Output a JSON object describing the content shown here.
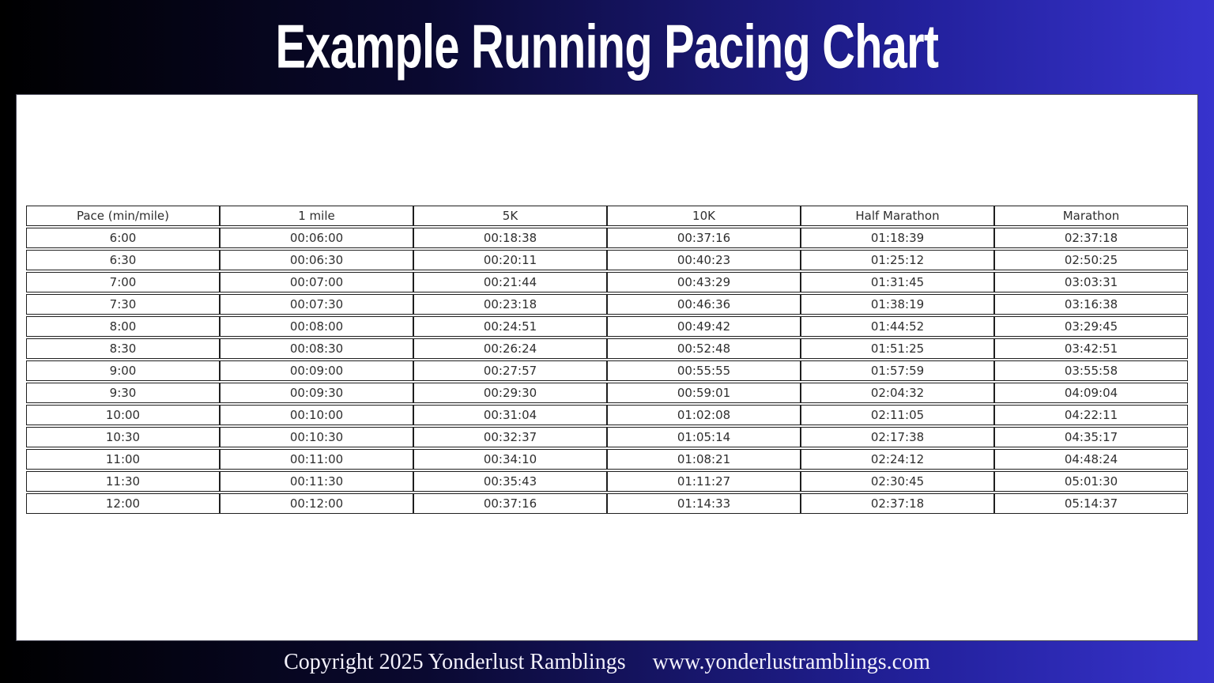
{
  "page": {
    "title": "Example Running Pacing Chart",
    "footer": {
      "copyright": "Copyright 2025 Yonderlust Ramblings",
      "website": "www.yonderlustramblings.com"
    }
  },
  "colors": {
    "background_gradient_left": "#000000",
    "background_gradient_right": "#3733cd",
    "card_background": "#ffffff",
    "table_border": "#1f1f1f",
    "table_text": "#2e2e2e",
    "title_text": "#ffffff",
    "footer_text": "#f4f2fc"
  },
  "chart_data": {
    "type": "table",
    "title": "Example Running Pacing Chart",
    "columns": [
      "Pace (min/mile)",
      "1 mile",
      "5K",
      "10K",
      "Half Marathon",
      "Marathon"
    ],
    "rows": [
      [
        "6:00",
        "00:06:00",
        "00:18:38",
        "00:37:16",
        "01:18:39",
        "02:37:18"
      ],
      [
        "6:30",
        "00:06:30",
        "00:20:11",
        "00:40:23",
        "01:25:12",
        "02:50:25"
      ],
      [
        "7:00",
        "00:07:00",
        "00:21:44",
        "00:43:29",
        "01:31:45",
        "03:03:31"
      ],
      [
        "7:30",
        "00:07:30",
        "00:23:18",
        "00:46:36",
        "01:38:19",
        "03:16:38"
      ],
      [
        "8:00",
        "00:08:00",
        "00:24:51",
        "00:49:42",
        "01:44:52",
        "03:29:45"
      ],
      [
        "8:30",
        "00:08:30",
        "00:26:24",
        "00:52:48",
        "01:51:25",
        "03:42:51"
      ],
      [
        "9:00",
        "00:09:00",
        "00:27:57",
        "00:55:55",
        "01:57:59",
        "03:55:58"
      ],
      [
        "9:30",
        "00:09:30",
        "00:29:30",
        "00:59:01",
        "02:04:32",
        "04:09:04"
      ],
      [
        "10:00",
        "00:10:00",
        "00:31:04",
        "01:02:08",
        "02:11:05",
        "04:22:11"
      ],
      [
        "10:30",
        "00:10:30",
        "00:32:37",
        "01:05:14",
        "02:17:38",
        "04:35:17"
      ],
      [
        "11:00",
        "00:11:00",
        "00:34:10",
        "01:08:21",
        "02:24:12",
        "04:48:24"
      ],
      [
        "11:30",
        "00:11:30",
        "00:35:43",
        "01:11:27",
        "02:30:45",
        "05:01:30"
      ],
      [
        "12:00",
        "00:12:00",
        "00:37:16",
        "01:14:33",
        "02:37:18",
        "05:14:37"
      ]
    ]
  }
}
